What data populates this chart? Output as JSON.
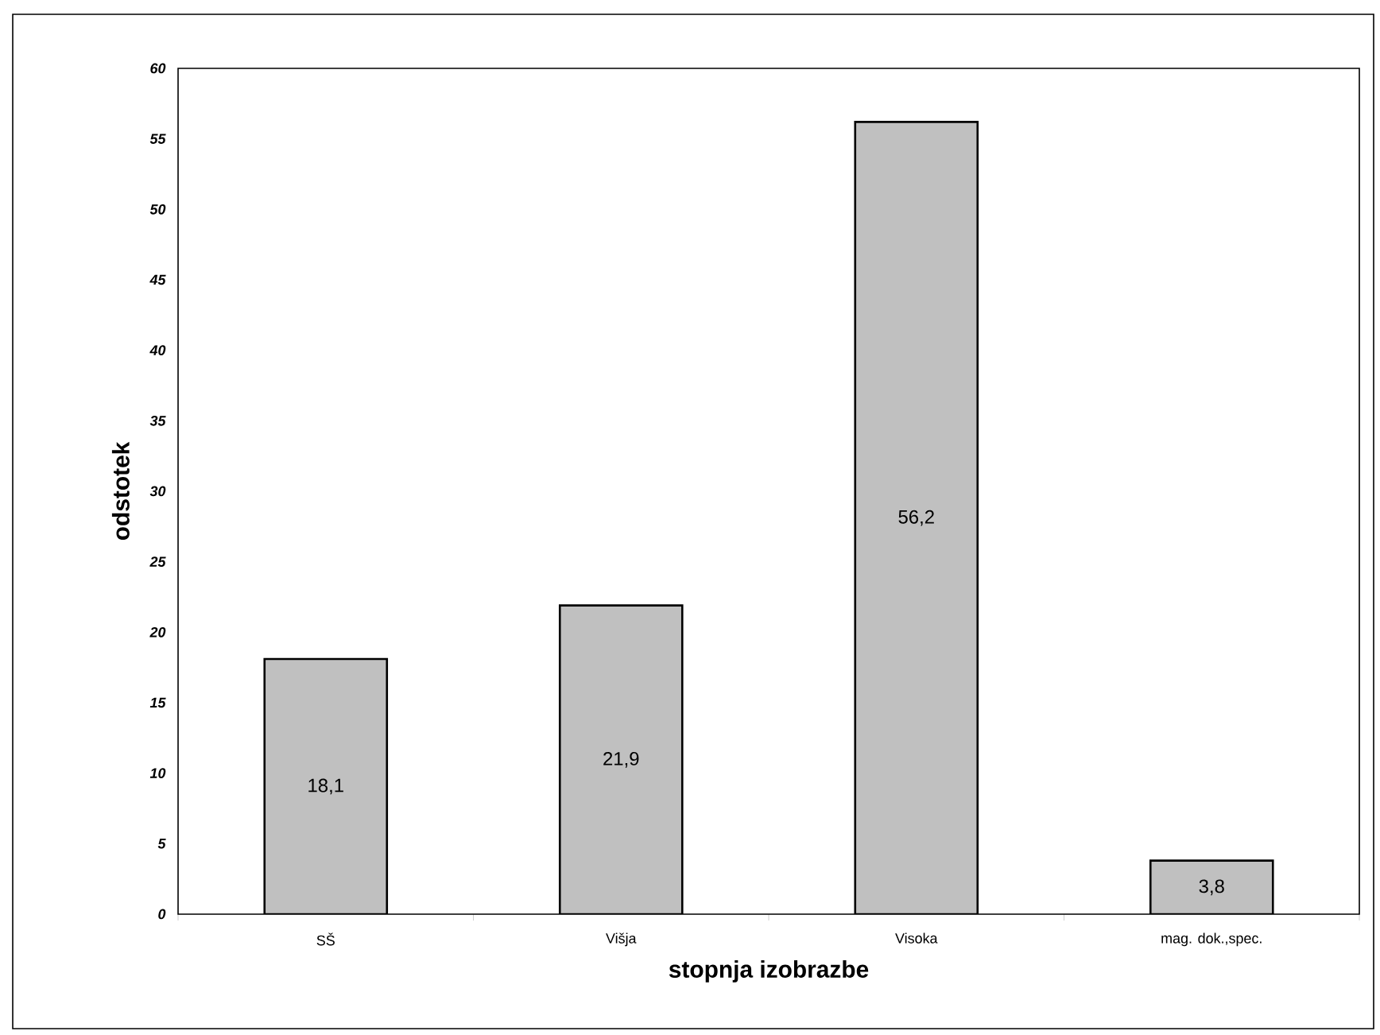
{
  "chart_data": {
    "type": "bar",
    "xlabel": "stopnja izobrazbe",
    "ylabel": "odstotek",
    "categories": [
      "SŠ",
      "Višja",
      "Visoka",
      "mag. dok.,spec."
    ],
    "values": [
      18.1,
      21.9,
      56.2,
      3.8
    ],
    "value_labels": [
      "18,1",
      "21,9",
      "56,2",
      "3,8"
    ],
    "color": "#c0c0c0",
    "ylim": [
      0,
      60
    ],
    "yticks": [
      0,
      5,
      10,
      15,
      20,
      25,
      30,
      35,
      40,
      45,
      50,
      55,
      60
    ]
  }
}
